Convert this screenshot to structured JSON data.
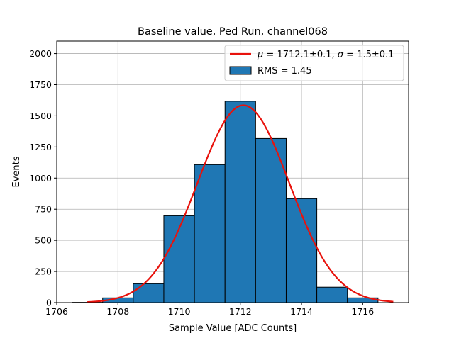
{
  "chart_data": {
    "type": "bar",
    "title": "Baseline value, Ped Run, channel068",
    "xlabel": "Sample Value [ADC Counts]",
    "ylabel": "Events",
    "xlim": [
      1706,
      1717.5
    ],
    "ylim": [
      0,
      2100
    ],
    "grid": true,
    "legend_position": "upper-right",
    "x_ticks": [
      1706,
      1708,
      1710,
      1712,
      1714,
      1716
    ],
    "y_ticks": [
      0,
      250,
      500,
      750,
      1000,
      1250,
      1500,
      1750,
      2000
    ],
    "histogram": {
      "name": "RMS = 1.45",
      "color": "#1f77b4",
      "edge_color": "#000000",
      "bin_edges": [
        1706.5,
        1707.5,
        1708.5,
        1709.5,
        1710.5,
        1711.5,
        1712.5,
        1713.5,
        1714.5,
        1715.5,
        1716.5
      ],
      "counts": [
        2,
        38,
        152,
        698,
        1108,
        1617,
        1318,
        835,
        124,
        38
      ]
    },
    "fit": {
      "name": "μ = 1712.1±0.1, σ = 1.5±0.1",
      "color": "#e8120c",
      "type": "gaussian",
      "amplitude": 1585,
      "mu": 1712.1,
      "sigma": 1.5,
      "x_range": [
        1707,
        1717
      ]
    },
    "legend": [
      {
        "kind": "line",
        "label_parts": [
          "μ",
          " = 1712.1±0.1, ",
          "σ",
          " = 1.5±0.1"
        ]
      },
      {
        "kind": "patch",
        "label": "RMS = 1.45"
      }
    ]
  }
}
